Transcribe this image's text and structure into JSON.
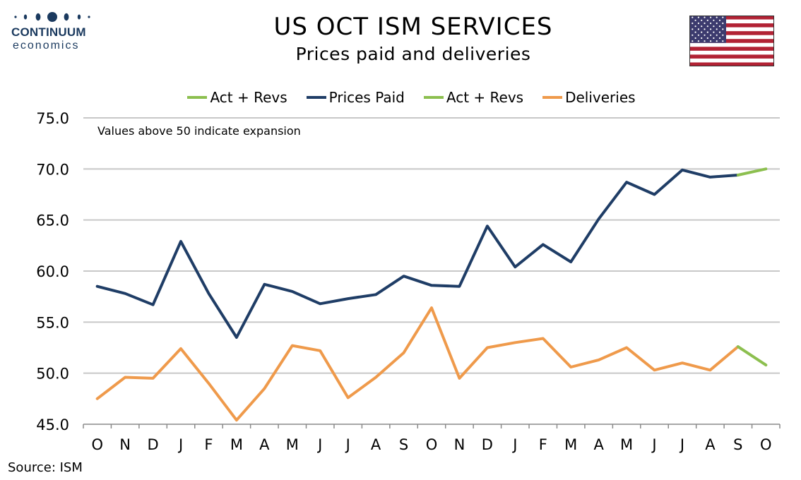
{
  "header": {
    "title": "US OCT ISM SERVICES",
    "subtitle": "Prices paid and deliveries"
  },
  "logo": {
    "name": "CONTINUUM",
    "sub": "economics",
    "color": "#1b3a5f"
  },
  "flag": {
    "icon": "us-flag-icon"
  },
  "source": "Source: ISM",
  "colors": {
    "prices_paid": "#1f3d66",
    "deliveries": "#ef9a4b",
    "act_revs": "#8cbf4f",
    "grid": "#c8c8c8"
  },
  "chart_data": {
    "type": "line",
    "categories": [
      "O",
      "N",
      "D",
      "J",
      "F",
      "M",
      "A",
      "M",
      "J",
      "J",
      "A",
      "S",
      "O",
      "N",
      "D",
      "J",
      "F",
      "M",
      "A",
      "M",
      "J",
      "J",
      "A",
      "S",
      "O"
    ],
    "ylim": [
      45,
      75
    ],
    "yticks": [
      "75.0",
      "70.0",
      "65.0",
      "60.0",
      "55.0",
      "50.0",
      "45.0"
    ],
    "ytick_values": [
      75,
      70,
      65,
      60,
      55,
      50,
      45
    ],
    "annotation": "Values above 50 indicate expansion",
    "grid": true,
    "legend_position": "top",
    "legend": [
      {
        "label": "Act + Revs",
        "color": "#8cbf4f"
      },
      {
        "label": "Prices Paid",
        "color": "#1f3d66"
      },
      {
        "label": "Act + Revs",
        "color": "#8cbf4f"
      },
      {
        "label": "Deliveries",
        "color": "#ef9a4b"
      }
    ],
    "series": [
      {
        "name": "Prices Paid",
        "color": "#1f3d66",
        "values": [
          58.5,
          57.8,
          56.7,
          62.9,
          57.8,
          53.5,
          58.7,
          58.0,
          56.8,
          57.3,
          57.7,
          59.5,
          58.6,
          58.5,
          64.4,
          60.4,
          62.6,
          60.9,
          65.1,
          68.7,
          67.5,
          69.9,
          69.2,
          69.4,
          null
        ]
      },
      {
        "name": "Act + Revs",
        "color": "#8cbf4f",
        "values": [
          null,
          null,
          null,
          null,
          null,
          null,
          null,
          null,
          null,
          null,
          null,
          null,
          null,
          null,
          null,
          null,
          null,
          null,
          null,
          null,
          null,
          null,
          null,
          69.4,
          70.0
        ]
      },
      {
        "name": "Deliveries",
        "color": "#ef9a4b",
        "values": [
          47.5,
          49.6,
          49.5,
          52.4,
          49.0,
          45.4,
          48.5,
          52.7,
          52.2,
          47.6,
          49.6,
          52.0,
          56.4,
          49.5,
          52.5,
          53.0,
          53.4,
          50.6,
          51.3,
          52.5,
          50.3,
          51.0,
          50.3,
          52.6,
          null
        ]
      },
      {
        "name": "Act + Revs",
        "color": "#8cbf4f",
        "values": [
          null,
          null,
          null,
          null,
          null,
          null,
          null,
          null,
          null,
          null,
          null,
          null,
          null,
          null,
          null,
          null,
          null,
          null,
          null,
          null,
          null,
          null,
          null,
          52.6,
          50.8
        ]
      }
    ]
  }
}
